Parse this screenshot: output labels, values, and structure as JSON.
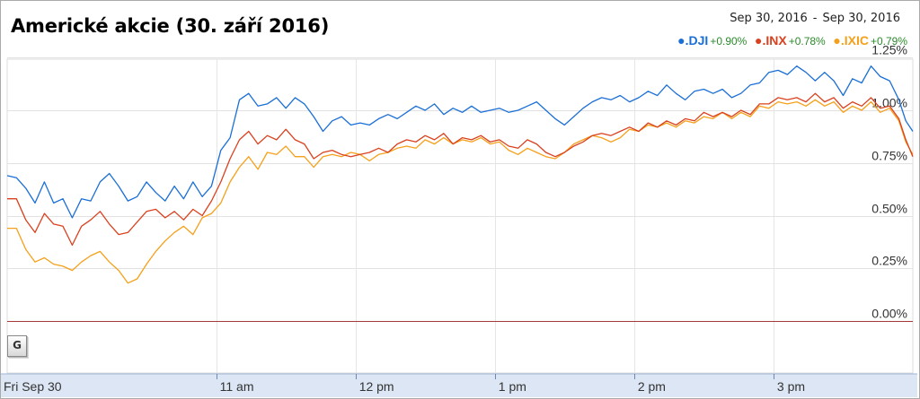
{
  "header": {
    "title": "Americké akcie (30. září 2016)",
    "range_start": "Sep 30, 2016",
    "range_end": "Sep 30, 2016",
    "range_sep": "-"
  },
  "legend": [
    {
      "symbol": ".DJI",
      "change": "+0.90%",
      "color": "#1a6fd6"
    },
    {
      "symbol": ".INX",
      "change": "+0.78%",
      "color": "#d9411e"
    },
    {
      "symbol": ".IXIC",
      "change": "+0.79%",
      "color": "#f5a01a"
    }
  ],
  "badge": {
    "icon": "google-finance-icon",
    "label": "G"
  },
  "chart_data": {
    "type": "line",
    "title": "Americké akcie (30. září 2016)",
    "x_unit": "minutes after 9:30",
    "x_range": [
      0,
      390
    ],
    "ylim": [
      0,
      1.25
    ],
    "y_ticks": [
      0.0,
      0.25,
      0.5,
      0.75,
      1.0,
      1.25
    ],
    "y_tick_labels": [
      "0.00%",
      "0.25%",
      "0.50%",
      "0.75%",
      "1.00%",
      "1.25%"
    ],
    "x_ticks": [
      0,
      90,
      150,
      210,
      270,
      330
    ],
    "x_tick_labels": [
      "Fri Sep 30",
      "11 am",
      "12 pm",
      "1 pm",
      "2 pm",
      "3 pm"
    ],
    "baseline": 0,
    "grid": true,
    "legend_position": "top-right",
    "series": [
      {
        "name": ".DJI",
        "color": "#1a6fd6",
        "keys": [
          [
            0,
            0.69
          ],
          [
            4,
            0.68
          ],
          [
            8,
            0.63
          ],
          [
            12,
            0.56
          ],
          [
            16,
            0.66
          ],
          [
            20,
            0.56
          ],
          [
            24,
            0.58
          ],
          [
            28,
            0.49
          ],
          [
            32,
            0.58
          ],
          [
            36,
            0.57
          ],
          [
            40,
            0.66
          ],
          [
            44,
            0.7
          ],
          [
            48,
            0.64
          ],
          [
            52,
            0.57
          ],
          [
            56,
            0.59
          ],
          [
            60,
            0.66
          ],
          [
            64,
            0.61
          ],
          [
            68,
            0.57
          ],
          [
            72,
            0.64
          ],
          [
            76,
            0.58
          ],
          [
            80,
            0.66
          ],
          [
            84,
            0.59
          ],
          [
            88,
            0.64
          ],
          [
            92,
            0.81
          ],
          [
            96,
            0.87
          ],
          [
            100,
            1.05
          ],
          [
            104,
            1.08
          ],
          [
            108,
            1.02
          ],
          [
            112,
            1.03
          ],
          [
            116,
            1.06
          ],
          [
            120,
            1.01
          ],
          [
            124,
            1.06
          ],
          [
            128,
            1.03
          ],
          [
            132,
            0.97
          ],
          [
            136,
            0.9
          ],
          [
            140,
            0.95
          ],
          [
            144,
            0.97
          ],
          [
            148,
            0.93
          ],
          [
            152,
            0.94
          ],
          [
            156,
            0.93
          ],
          [
            160,
            0.96
          ],
          [
            164,
            0.98
          ],
          [
            168,
            0.96
          ],
          [
            172,
            0.99
          ],
          [
            176,
            1.02
          ],
          [
            180,
            1.0
          ],
          [
            184,
            1.03
          ],
          [
            188,
            0.98
          ],
          [
            192,
            1.01
          ],
          [
            196,
            0.99
          ],
          [
            200,
            1.02
          ],
          [
            204,
            0.99
          ],
          [
            208,
            1.0
          ],
          [
            212,
            1.01
          ],
          [
            216,
            0.99
          ],
          [
            220,
            1.0
          ],
          [
            224,
            1.02
          ],
          [
            228,
            1.04
          ],
          [
            232,
            1.0
          ],
          [
            236,
            0.96
          ],
          [
            240,
            0.93
          ],
          [
            244,
            0.97
          ],
          [
            248,
            1.01
          ],
          [
            252,
            1.04
          ],
          [
            256,
            1.06
          ],
          [
            260,
            1.05
          ],
          [
            264,
            1.07
          ],
          [
            268,
            1.04
          ],
          [
            272,
            1.06
          ],
          [
            276,
            1.09
          ],
          [
            280,
            1.07
          ],
          [
            284,
            1.12
          ],
          [
            288,
            1.08
          ],
          [
            292,
            1.05
          ],
          [
            296,
            1.09
          ],
          [
            300,
            1.1
          ],
          [
            304,
            1.08
          ],
          [
            308,
            1.1
          ],
          [
            312,
            1.06
          ],
          [
            316,
            1.08
          ],
          [
            320,
            1.12
          ],
          [
            324,
            1.13
          ],
          [
            328,
            1.18
          ],
          [
            332,
            1.19
          ],
          [
            336,
            1.17
          ],
          [
            340,
            1.21
          ],
          [
            344,
            1.18
          ],
          [
            348,
            1.14
          ],
          [
            352,
            1.18
          ],
          [
            356,
            1.14
          ],
          [
            360,
            1.07
          ],
          [
            364,
            1.15
          ],
          [
            368,
            1.13
          ],
          [
            372,
            1.21
          ],
          [
            376,
            1.16
          ],
          [
            380,
            1.14
          ],
          [
            384,
            1.05
          ],
          [
            387,
            0.95
          ],
          [
            390,
            0.9
          ]
        ]
      },
      {
        "name": ".INX",
        "color": "#d9411e",
        "keys": [
          [
            0,
            0.58
          ],
          [
            4,
            0.58
          ],
          [
            8,
            0.48
          ],
          [
            12,
            0.42
          ],
          [
            16,
            0.51
          ],
          [
            20,
            0.46
          ],
          [
            24,
            0.45
          ],
          [
            28,
            0.36
          ],
          [
            32,
            0.45
          ],
          [
            36,
            0.48
          ],
          [
            40,
            0.52
          ],
          [
            44,
            0.46
          ],
          [
            48,
            0.41
          ],
          [
            52,
            0.42
          ],
          [
            56,
            0.47
          ],
          [
            60,
            0.52
          ],
          [
            64,
            0.53
          ],
          [
            68,
            0.49
          ],
          [
            72,
            0.52
          ],
          [
            76,
            0.48
          ],
          [
            80,
            0.53
          ],
          [
            84,
            0.5
          ],
          [
            88,
            0.57
          ],
          [
            92,
            0.66
          ],
          [
            96,
            0.77
          ],
          [
            100,
            0.86
          ],
          [
            104,
            0.9
          ],
          [
            108,
            0.84
          ],
          [
            112,
            0.88
          ],
          [
            116,
            0.86
          ],
          [
            120,
            0.91
          ],
          [
            124,
            0.86
          ],
          [
            128,
            0.84
          ],
          [
            132,
            0.77
          ],
          [
            136,
            0.8
          ],
          [
            140,
            0.81
          ],
          [
            144,
            0.79
          ],
          [
            148,
            0.78
          ],
          [
            152,
            0.79
          ],
          [
            156,
            0.8
          ],
          [
            160,
            0.82
          ],
          [
            164,
            0.8
          ],
          [
            168,
            0.84
          ],
          [
            172,
            0.86
          ],
          [
            176,
            0.85
          ],
          [
            180,
            0.88
          ],
          [
            184,
            0.86
          ],
          [
            188,
            0.89
          ],
          [
            192,
            0.84
          ],
          [
            196,
            0.87
          ],
          [
            200,
            0.86
          ],
          [
            204,
            0.88
          ],
          [
            208,
            0.85
          ],
          [
            212,
            0.86
          ],
          [
            216,
            0.83
          ],
          [
            220,
            0.82
          ],
          [
            224,
            0.86
          ],
          [
            228,
            0.84
          ],
          [
            232,
            0.8
          ],
          [
            236,
            0.78
          ],
          [
            240,
            0.8
          ],
          [
            244,
            0.83
          ],
          [
            248,
            0.85
          ],
          [
            252,
            0.88
          ],
          [
            256,
            0.89
          ],
          [
            260,
            0.88
          ],
          [
            264,
            0.9
          ],
          [
            268,
            0.92
          ],
          [
            272,
            0.9
          ],
          [
            276,
            0.94
          ],
          [
            280,
            0.92
          ],
          [
            284,
            0.95
          ],
          [
            288,
            0.93
          ],
          [
            292,
            0.96
          ],
          [
            296,
            0.95
          ],
          [
            300,
            0.99
          ],
          [
            304,
            0.97
          ],
          [
            308,
            0.99
          ],
          [
            312,
            0.97
          ],
          [
            316,
            1.0
          ],
          [
            320,
            0.98
          ],
          [
            324,
            1.03
          ],
          [
            328,
            1.03
          ],
          [
            332,
            1.06
          ],
          [
            336,
            1.05
          ],
          [
            340,
            1.06
          ],
          [
            344,
            1.04
          ],
          [
            348,
            1.08
          ],
          [
            352,
            1.04
          ],
          [
            356,
            1.06
          ],
          [
            360,
            1.01
          ],
          [
            364,
            1.04
          ],
          [
            368,
            1.02
          ],
          [
            372,
            1.06
          ],
          [
            376,
            1.01
          ],
          [
            380,
            1.02
          ],
          [
            384,
            0.96
          ],
          [
            387,
            0.86
          ],
          [
            390,
            0.78
          ]
        ]
      },
      {
        "name": ".IXIC",
        "color": "#f5a01a",
        "keys": [
          [
            0,
            0.44
          ],
          [
            4,
            0.44
          ],
          [
            8,
            0.34
          ],
          [
            12,
            0.28
          ],
          [
            16,
            0.3
          ],
          [
            20,
            0.27
          ],
          [
            24,
            0.26
          ],
          [
            28,
            0.24
          ],
          [
            32,
            0.28
          ],
          [
            36,
            0.31
          ],
          [
            40,
            0.33
          ],
          [
            44,
            0.28
          ],
          [
            48,
            0.24
          ],
          [
            52,
            0.18
          ],
          [
            56,
            0.2
          ],
          [
            60,
            0.27
          ],
          [
            64,
            0.33
          ],
          [
            68,
            0.38
          ],
          [
            72,
            0.42
          ],
          [
            76,
            0.45
          ],
          [
            80,
            0.41
          ],
          [
            84,
            0.49
          ],
          [
            88,
            0.51
          ],
          [
            92,
            0.56
          ],
          [
            96,
            0.66
          ],
          [
            100,
            0.73
          ],
          [
            104,
            0.78
          ],
          [
            108,
            0.72
          ],
          [
            112,
            0.8
          ],
          [
            116,
            0.79
          ],
          [
            120,
            0.83
          ],
          [
            124,
            0.78
          ],
          [
            128,
            0.78
          ],
          [
            132,
            0.73
          ],
          [
            136,
            0.78
          ],
          [
            140,
            0.79
          ],
          [
            144,
            0.78
          ],
          [
            148,
            0.8
          ],
          [
            152,
            0.79
          ],
          [
            156,
            0.76
          ],
          [
            160,
            0.79
          ],
          [
            164,
            0.8
          ],
          [
            168,
            0.82
          ],
          [
            172,
            0.83
          ],
          [
            176,
            0.82
          ],
          [
            180,
            0.86
          ],
          [
            184,
            0.84
          ],
          [
            188,
            0.87
          ],
          [
            192,
            0.84
          ],
          [
            196,
            0.86
          ],
          [
            200,
            0.85
          ],
          [
            204,
            0.87
          ],
          [
            208,
            0.84
          ],
          [
            212,
            0.85
          ],
          [
            216,
            0.81
          ],
          [
            220,
            0.79
          ],
          [
            224,
            0.82
          ],
          [
            228,
            0.8
          ],
          [
            232,
            0.78
          ],
          [
            236,
            0.77
          ],
          [
            240,
            0.8
          ],
          [
            244,
            0.84
          ],
          [
            248,
            0.86
          ],
          [
            252,
            0.88
          ],
          [
            256,
            0.87
          ],
          [
            260,
            0.85
          ],
          [
            264,
            0.87
          ],
          [
            268,
            0.91
          ],
          [
            272,
            0.9
          ],
          [
            276,
            0.93
          ],
          [
            280,
            0.92
          ],
          [
            284,
            0.94
          ],
          [
            288,
            0.92
          ],
          [
            292,
            0.95
          ],
          [
            296,
            0.94
          ],
          [
            300,
            0.97
          ],
          [
            304,
            0.96
          ],
          [
            308,
            0.99
          ],
          [
            312,
            0.96
          ],
          [
            316,
            0.99
          ],
          [
            320,
            0.97
          ],
          [
            324,
            1.02
          ],
          [
            328,
            1.01
          ],
          [
            332,
            1.04
          ],
          [
            336,
            1.03
          ],
          [
            340,
            1.04
          ],
          [
            344,
            1.02
          ],
          [
            348,
            1.05
          ],
          [
            352,
            1.02
          ],
          [
            356,
            1.04
          ],
          [
            360,
            0.99
          ],
          [
            364,
            1.02
          ],
          [
            368,
            1.0
          ],
          [
            372,
            1.04
          ],
          [
            376,
            0.99
          ],
          [
            380,
            1.01
          ],
          [
            384,
            0.95
          ],
          [
            387,
            0.85
          ],
          [
            390,
            0.79
          ]
        ]
      }
    ]
  }
}
